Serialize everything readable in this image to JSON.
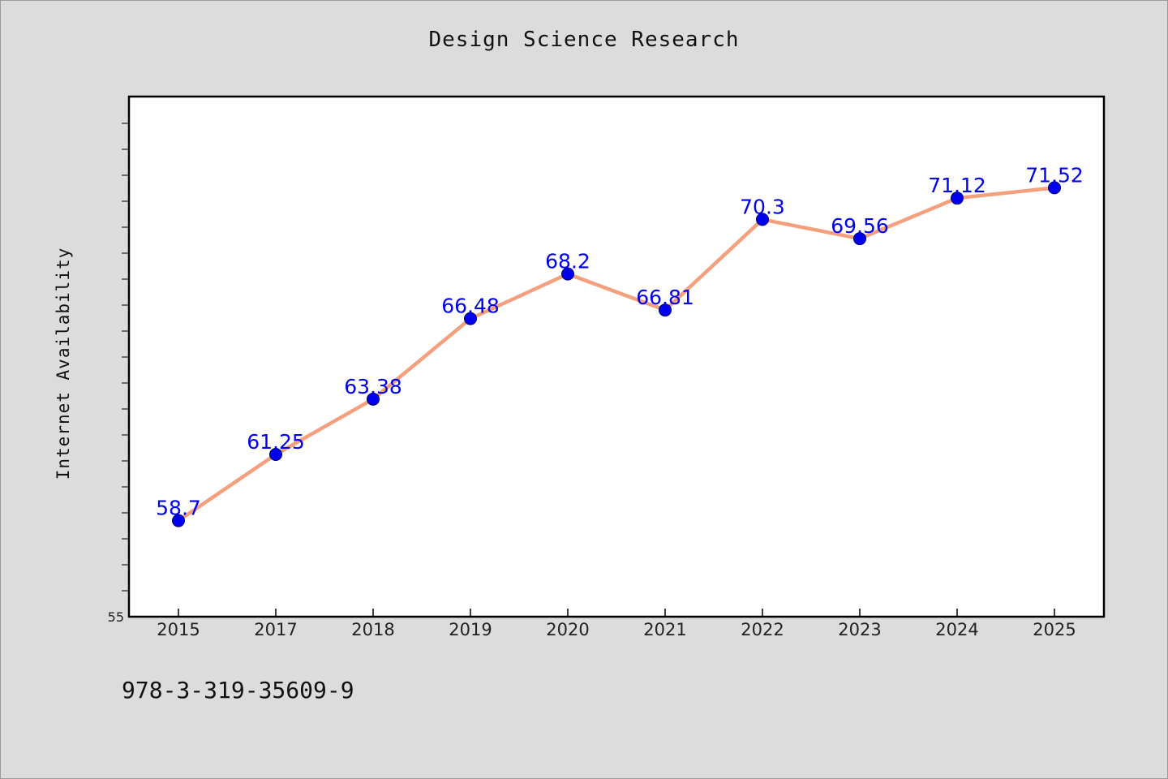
{
  "chart_data": {
    "type": "line",
    "title": "Design Science Research",
    "xlabel": "",
    "ylabel": "Internet Availability",
    "categories": [
      "2015",
      "2017",
      "2018",
      "2019",
      "2020",
      "2021",
      "2022",
      "2023",
      "2024",
      "2025"
    ],
    "series": [
      {
        "values": [
          58.7,
          61.25,
          63.38,
          66.48,
          68.2,
          66.81,
          70.3,
          69.56,
          71.12,
          71.52
        ]
      }
    ],
    "data_labels": [
      "58.7",
      "61.25",
      "63.38",
      "66.48",
      "68.2",
      "66.81",
      "70.3",
      "69.56",
      "71.12",
      "71.52"
    ],
    "ylim": [
      55,
      75
    ],
    "yticks_labeled": [
      "55"
    ],
    "grid": false,
    "legend": "none",
    "line_color": "#f4a07e",
    "marker_color": "#0000ee",
    "label_color": "#0000ee"
  },
  "footer": {
    "text": "978-3-319-35609-9"
  }
}
